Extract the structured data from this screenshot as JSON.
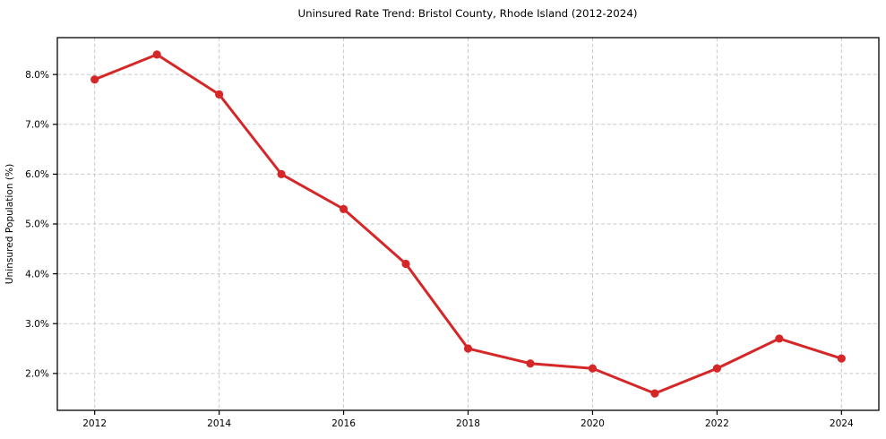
{
  "chart_data": {
    "type": "line",
    "title": "Uninsured Rate Trend: Bristol County, Rhode Island (2012-2024)",
    "xlabel": "",
    "ylabel": "Uninsured Population (%)",
    "x": [
      2012,
      2013,
      2014,
      2015,
      2016,
      2017,
      2018,
      2019,
      2020,
      2021,
      2022,
      2023,
      2024
    ],
    "series": [
      {
        "name": "Uninsured rate",
        "values": [
          7.9,
          8.4,
          7.6,
          6.0,
          5.3,
          4.2,
          2.5,
          2.2,
          2.1,
          1.6,
          2.1,
          2.7,
          2.3
        ],
        "color": "#d62728",
        "marker": "circle"
      }
    ],
    "xlim": [
      2011.4,
      2024.6
    ],
    "ylim": [
      1.26,
      8.74
    ],
    "xticks": [
      2012,
      2014,
      2016,
      2018,
      2020,
      2022,
      2024
    ],
    "xtick_labels": [
      "2012",
      "2014",
      "2016",
      "2018",
      "2020",
      "2022",
      "2024"
    ],
    "yticks": [
      2,
      3,
      4,
      5,
      6,
      7,
      8
    ],
    "ytick_labels": [
      "2.0%",
      "3.0%",
      "4.0%",
      "5.0%",
      "6.0%",
      "7.0%",
      "8.0%"
    ],
    "grid": "dashed",
    "legend": "none"
  }
}
